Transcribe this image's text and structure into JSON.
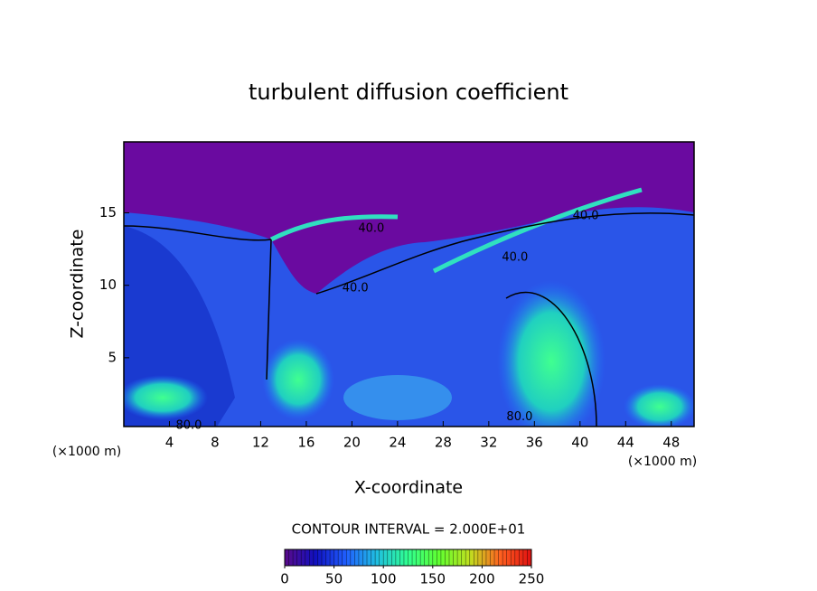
{
  "chart_data": {
    "type": "contour",
    "title": "turbulent diffusion coefficient",
    "x_label": "X-coordinate",
    "y_label": "Z-coordinate",
    "x_unit": "(×1000 m)",
    "xlim": [
      0,
      50
    ],
    "xticks": [
      4,
      8,
      12,
      16,
      20,
      24,
      28,
      32,
      36,
      40,
      44,
      48
    ],
    "ylim": [
      0.25,
      19.9
    ],
    "yticks": [
      5,
      10,
      15
    ],
    "contour_interval": "CONTOUR INTERVAL = 2.000E+01",
    "contour_labels": [
      {
        "text": "80.0",
        "x": 5.7,
        "y": 0.3
      },
      {
        "text": "40.0",
        "x": 21.7,
        "y": 13.9
      },
      {
        "text": "40.0",
        "x": 20.3,
        "y": 9.8
      },
      {
        "text": "40.0",
        "x": 34.3,
        "y": 11.9
      },
      {
        "text": "40.0",
        "x": 40.5,
        "y": 14.8
      },
      {
        "text": "80.0",
        "x": 34.7,
        "y": 0.9
      }
    ],
    "clim": [
      0,
      250
    ],
    "cticks": [
      0,
      50,
      100,
      150,
      200,
      250
    ],
    "colormap": [
      "#5a0a8a",
      "#1010c0",
      "#2060ff",
      "#20c0e0",
      "#30ff90",
      "#60ff30",
      "#c0e020",
      "#ff6020",
      "#e01010"
    ]
  }
}
